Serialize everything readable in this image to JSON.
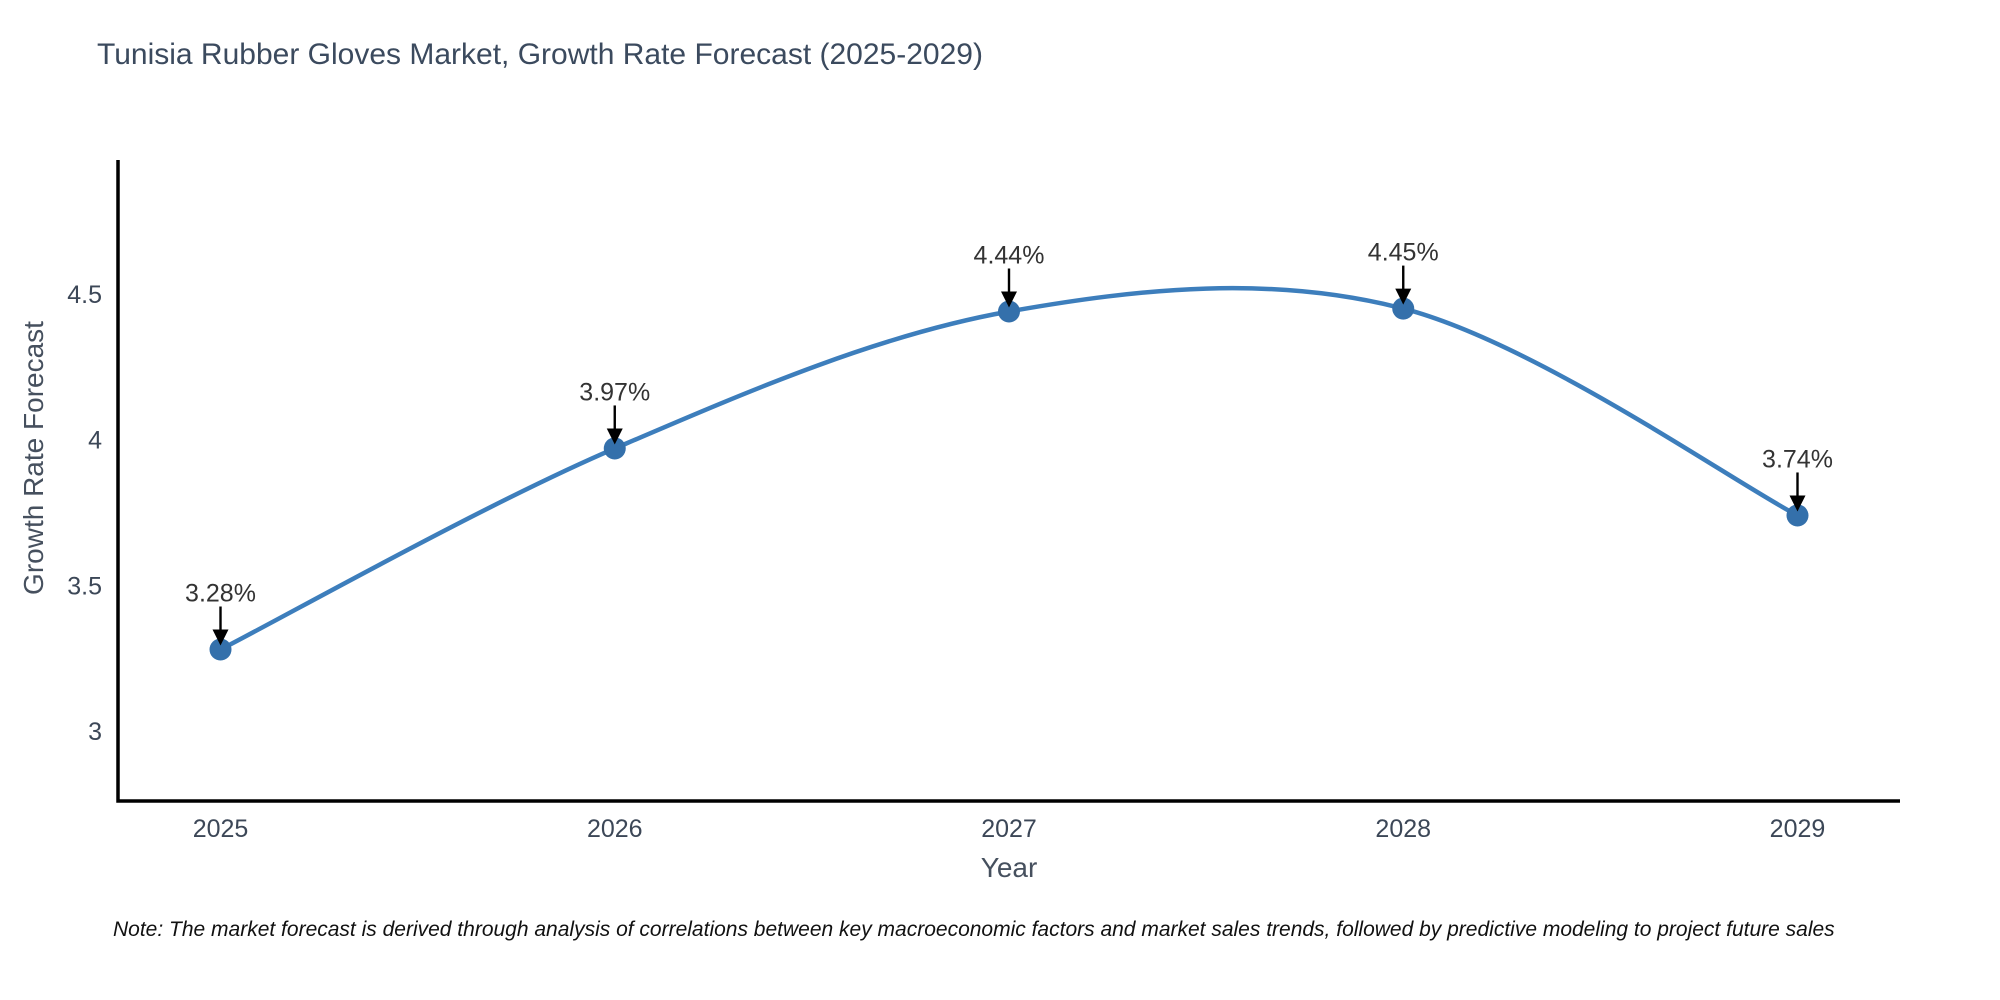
{
  "page": {
    "title": "Tunisia Rubber Gloves Market, Growth Rate Forecast (2025-2029)",
    "note": "Note: The market forecast is derived through analysis of correlations between key macroeconomic factors and market sales trends, followed by predictive modeling to project future sales"
  },
  "chart_data": {
    "type": "line",
    "title": "Tunisia Rubber Gloves Market, Growth Rate Forecast (2025-2029)",
    "xlabel": "Year",
    "ylabel": "Growth Rate Forecast",
    "x": [
      2025,
      2026,
      2027,
      2028,
      2029
    ],
    "values": [
      3.28,
      3.97,
      4.44,
      4.45,
      3.74
    ],
    "point_labels": [
      "3.28%",
      "3.97%",
      "4.44%",
      "4.45%",
      "3.74%"
    ],
    "xtick_labels": [
      "2025",
      "2026",
      "2027",
      "2028",
      "2029"
    ],
    "yticks": [
      3,
      3.5,
      4,
      4.5
    ],
    "ytick_labels": [
      "3",
      "3.5",
      "4",
      "4.5"
    ],
    "ylim": [
      2.76,
      4.96
    ],
    "xlim": [
      2024.74,
      2029.26
    ],
    "line_shape": "spline",
    "grid": false,
    "legend": "none",
    "annotations": "black down-arrows from labels to markers",
    "colors": {
      "line": "#3d7ebc",
      "marker": "#3470ab",
      "axis": "#000000",
      "title_text": "#3b4a5e",
      "axis_title_text": "#46505e",
      "tick_text": "#3c4757",
      "annotation_text": "#333333",
      "arrow": "#000000",
      "background": "#ffffff"
    }
  }
}
